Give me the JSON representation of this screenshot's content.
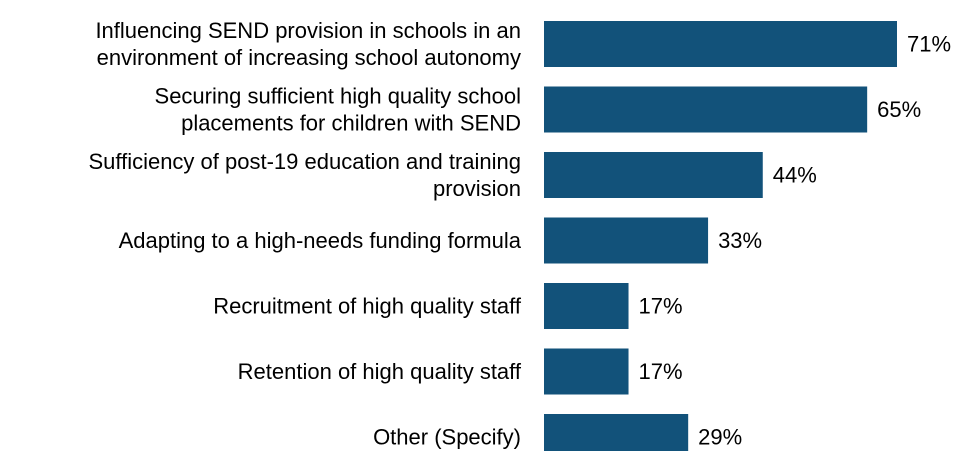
{
  "chart_data": {
    "type": "bar",
    "orientation": "horizontal",
    "categories": [
      [
        "Influencing SEND provision in schools in an",
        "environment of increasing school autonomy"
      ],
      [
        "Securing sufficient high quality school",
        "placements for children with SEND"
      ],
      [
        "Sufficiency of post-19 education and training",
        "provision"
      ],
      [
        "Adapting to a high-needs funding formula"
      ],
      [
        "Recruitment of high quality staff"
      ],
      [
        "Retention of high quality staff"
      ],
      [
        "Other (Specify)"
      ]
    ],
    "values": [
      71,
      65,
      44,
      33,
      17,
      17,
      29
    ],
    "value_labels": [
      "71%",
      "65%",
      "44%",
      "33%",
      "17%",
      "17%",
      "29%"
    ],
    "unit": "%",
    "xlim": [
      0,
      100
    ],
    "grid": false,
    "legend": "none",
    "bar_color": "#12527a"
  }
}
